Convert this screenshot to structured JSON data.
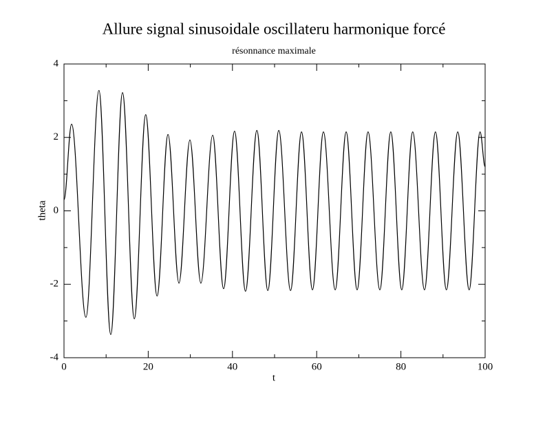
{
  "chart_data": {
    "type": "line",
    "title": "Allure signal sinusoidale oscillateru harmonique forcé",
    "subtitle": "résonnance maximale",
    "x_label": "t",
    "y_label": "theta",
    "x": [
      0,
      1.8,
      5.2,
      8.3,
      11.1,
      13.9,
      16.7,
      19.4,
      22.1,
      24.7,
      27.3,
      29.9,
      32.5,
      35.3,
      37.9,
      40.5,
      43.1,
      45.8,
      48.4,
      51.0,
      53.8,
      56.4,
      59.0,
      61.6,
      64.4,
      67.0,
      69.6,
      72.2,
      75.0,
      77.6,
      80.2,
      82.8,
      85.6,
      88.2,
      90.8,
      93.5,
      96.2,
      98.8,
      100
    ],
    "series": [
      {
        "color": "#000000",
        "values": [
          0.3,
          2.36,
          -2.9,
          3.28,
          -3.37,
          3.22,
          -2.94,
          2.62,
          -2.32,
          2.08,
          -1.97,
          1.93,
          -1.97,
          2.06,
          -2.12,
          2.17,
          -2.19,
          2.19,
          -2.17,
          2.19,
          -2.17,
          2.15,
          -2.15,
          2.15,
          -2.15,
          2.15,
          -2.15,
          2.15,
          -2.15,
          2.15,
          -2.15,
          2.15,
          -2.15,
          2.15,
          -2.15,
          2.15,
          -2.15,
          2.15,
          1.2
        ]
      }
    ],
    "xlim": [
      0,
      100
    ],
    "ylim": [
      -4,
      4
    ],
    "xticks": [
      0,
      20,
      40,
      60,
      80,
      100
    ],
    "yticks": [
      -4,
      -2,
      0,
      2,
      4
    ]
  }
}
